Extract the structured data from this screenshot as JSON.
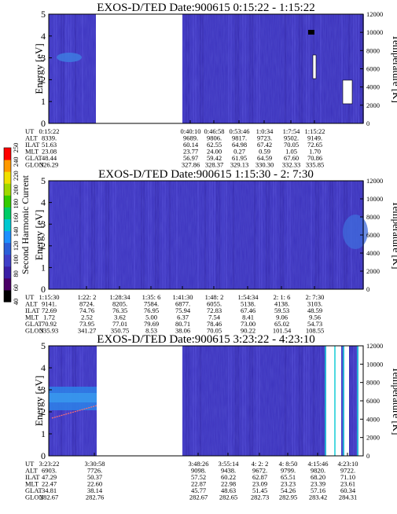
{
  "chart_data": {
    "type": "heatmap",
    "colorbar": {
      "label": "Second Harmonic Current",
      "ticks": [
        "40",
        "60",
        "80",
        "100",
        "120",
        "140",
        "160",
        "180",
        "200",
        "220",
        "240",
        "250"
      ],
      "colors": [
        "#000000",
        "#4a0066",
        "#3a1fa6",
        "#3f3fc8",
        "#2b5fd8",
        "#1e90ff",
        "#00c8d0",
        "#00cc66",
        "#33cc00",
        "#a0d800",
        "#f0e000",
        "#ff9900",
        "#ff0000"
      ]
    },
    "panels": [
      {
        "title": "EXOS-D/TED   Date:900615   0:15:22 - 1:15:22",
        "ylabel": "Energy [eV]",
        "y2label": "Temperature [K]",
        "ylim": [
          0,
          5
        ],
        "y2lim": [
          0,
          12000
        ],
        "yticks": [
          "0",
          "1",
          "2",
          "3",
          "4",
          "5"
        ],
        "y2ticks": [
          "0",
          "2000",
          "4000",
          "6000",
          "8000",
          "10000",
          "12000"
        ],
        "row_labels": [
          "UT",
          "ALT",
          "ILAT",
          "MLT",
          "GLAT",
          "GLON"
        ],
        "columns": [
          [
            "0:15:22",
            "8339.",
            "51.63",
            "23.08",
            "48.44",
            "326.29"
          ],
          [
            "0:40:10",
            "9689.",
            "60.14",
            "23.77",
            "56.97",
            "327.86"
          ],
          [
            "0:46:58",
            "9806.",
            "62.55",
            "24.00",
            "59.42",
            "328.37"
          ],
          [
            "0:53:46",
            "9817.",
            "64.98",
            "0.27",
            "61.95",
            "329.13"
          ],
          [
            "1:0:34",
            "9723.",
            "67.42",
            "0.59",
            "64.59",
            "330.30"
          ],
          [
            "1:7:54",
            "9502.",
            "70.05",
            "1.05",
            "67.60",
            "332.33"
          ],
          [
            "1:15:22",
            "9149.",
            "72.65",
            "1.70",
            "70.86",
            "335.85"
          ]
        ]
      },
      {
        "title": "EXOS-D/TED   Date:900615   1:15:30 - 2: 7:30",
        "ylabel": "Energy [eV]",
        "y2label": "Temperature [K]",
        "ylim": [
          0,
          5
        ],
        "y2lim": [
          0,
          12000
        ],
        "yticks": [
          "0",
          "1",
          "2",
          "3",
          "4",
          "5"
        ],
        "y2ticks": [
          "0",
          "2000",
          "4000",
          "6000",
          "8000",
          "10000",
          "12000"
        ],
        "row_labels": [
          "UT",
          "ALT",
          "ILAT",
          "MLT",
          "GLAT",
          "GLON"
        ],
        "columns": [
          [
            "1:15:30",
            "9141.",
            "72.69",
            "1.72",
            "70.92",
            "335.93"
          ],
          [
            "1:22: 2",
            "8724.",
            "74.76",
            "2.52",
            "73.95",
            "341.27"
          ],
          [
            "1:28:34",
            "8205.",
            "76.35",
            "3.62",
            "77.01",
            "350.75"
          ],
          [
            "1:35: 6",
            "7584.",
            "76.95",
            "5.00",
            "79.69",
            "8.53"
          ],
          [
            "1:41:30",
            "6877.",
            "75.94",
            "6.37",
            "80.71",
            "38.06"
          ],
          [
            "1:48: 2",
            "6055.",
            "72.83",
            "7.54",
            "78.46",
            "70.05"
          ],
          [
            "1:54:34",
            "5138.",
            "67.46",
            "8.41",
            "73.00",
            "90.22"
          ],
          [
            "2: 1: 6",
            "4138.",
            "59.53",
            "9.06",
            "65.02",
            "101.54"
          ],
          [
            "2: 7:30",
            "3103.",
            "48.59",
            "9.56",
            "54.73",
            "108.55"
          ]
        ]
      },
      {
        "title": "EXOS-D/TED   Date:900615   3:23:22 - 4:23:10",
        "ylabel": "Energy [eV]",
        "y2label": "Temperature [K]",
        "ylim": [
          0,
          5
        ],
        "y2lim": [
          0,
          12000
        ],
        "yticks": [
          "0",
          "1",
          "2",
          "3",
          "4",
          "5"
        ],
        "y2ticks": [
          "0",
          "2000",
          "4000",
          "6000",
          "8000",
          "10000",
          "12000"
        ],
        "row_labels": [
          "UT",
          "ALT",
          "ILAT",
          "MLT",
          "GLAT",
          "GLON"
        ],
        "columns": [
          [
            "3:23:22",
            "6903.",
            "47.29",
            "22.47",
            "34.81",
            "282.67"
          ],
          [
            "3:30:58",
            "7726.",
            "50.37",
            "22.60",
            "38.14",
            "282.76"
          ],
          [
            "3:48:26",
            "9098.",
            "57.52",
            "22.87",
            "45.77",
            "282.67"
          ],
          [
            "3:55:14",
            "9438.",
            "60.22",
            "22.98",
            "48.63",
            "282.65"
          ],
          [
            "4: 2: 2",
            "9672.",
            "62.87",
            "23.09",
            "51.45",
            "282.73"
          ],
          [
            "4: 8:50",
            "9799.",
            "65.51",
            "23.23",
            "54.26",
            "282.95"
          ],
          [
            "4:15:46",
            "9820.",
            "68.20",
            "23.39",
            "57.16",
            "283.42"
          ],
          [
            "4:23:10",
            "9722.",
            "71.10",
            "23.61",
            "60.34",
            "284.31"
          ]
        ]
      }
    ]
  }
}
